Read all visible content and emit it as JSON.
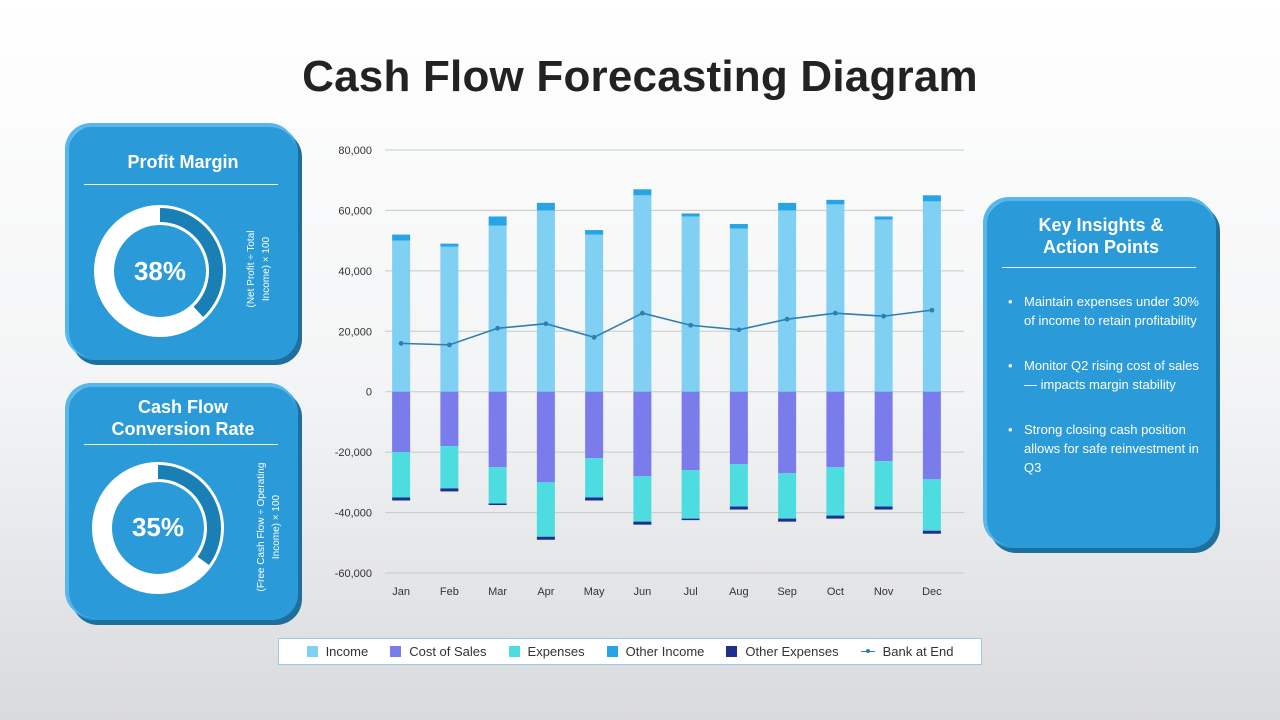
{
  "title": "Cash Flow Forecasting Diagram",
  "profit_card": {
    "title": "Profit Margin",
    "value_label": "38%",
    "fraction": 0.38,
    "formula": "(Net Profit ÷ Total Income) × 100"
  },
  "conversion_card": {
    "title": "Cash Flow Conversion Rate",
    "value_label": "35%",
    "fraction": 0.35,
    "formula": "(Free Cash Flow ÷ Operating Income) × 100"
  },
  "insights": {
    "title": "Key Insights & Action Points",
    "items": [
      "Maintain expenses under 30% of income to retain profitability",
      "Monitor Q2 rising cost of sales — impacts margin stability",
      "Strong closing cash position allows for safe reinvestment in Q3"
    ]
  },
  "colors": {
    "card": "#2b9ad9",
    "income": "#7fd0f3",
    "cost_of_sales": "#7b7cec",
    "expenses": "#4ddde0",
    "other_income": "#27a4e3",
    "other_expenses": "#1f2f8f",
    "bank_line": "#2e7fb0",
    "donut_track": "#ffffff",
    "donut_fill": "#1a7fb4"
  },
  "chart_data": {
    "type": "bar",
    "stacked": true,
    "categories": [
      "Jan",
      "Feb",
      "Mar",
      "Apr",
      "May",
      "Jun",
      "Jul",
      "Aug",
      "Sep",
      "Oct",
      "Nov",
      "Dec"
    ],
    "ylim": [
      -60000,
      80000
    ],
    "yticks": [
      80000,
      60000,
      40000,
      20000,
      0,
      -20000,
      -40000,
      -60000
    ],
    "ytick_labels": [
      "80,000",
      "60,000",
      "40,000",
      "20,000",
      "0",
      "-20,000",
      "-40,000",
      "-60,000"
    ],
    "grid": true,
    "legend_position": "bottom",
    "series": [
      {
        "name": "Income",
        "values": [
          50000,
          48000,
          55000,
          60000,
          52000,
          65000,
          58000,
          54000,
          60000,
          62000,
          57000,
          63000
        ]
      },
      {
        "name": "Cost of Sales",
        "values": [
          -20000,
          -18000,
          -25000,
          -30000,
          -22000,
          -28000,
          -26000,
          -24000,
          -27000,
          -25000,
          -23000,
          -29000
        ]
      },
      {
        "name": "Expenses",
        "values": [
          -15000,
          -14000,
          -12000,
          -18000,
          -13000,
          -15000,
          -16000,
          -14000,
          -15000,
          -16000,
          -15000,
          -17000
        ]
      },
      {
        "name": "Other Income",
        "values": [
          2000,
          1000,
          3000,
          2500,
          1500,
          2000,
          1000,
          1500,
          2500,
          1500,
          1000,
          2000
        ]
      },
      {
        "name": "Other Expenses",
        "values": [
          -1000,
          -1000,
          -500,
          -1000,
          -1000,
          -1000,
          -500,
          -1000,
          -1000,
          -1000,
          -1000,
          -1000
        ]
      },
      {
        "name": "Bank at End",
        "type": "line",
        "values": [
          16000,
          15500,
          21000,
          22500,
          18000,
          26000,
          22000,
          20500,
          24000,
          26000,
          25000,
          27000
        ]
      }
    ]
  }
}
